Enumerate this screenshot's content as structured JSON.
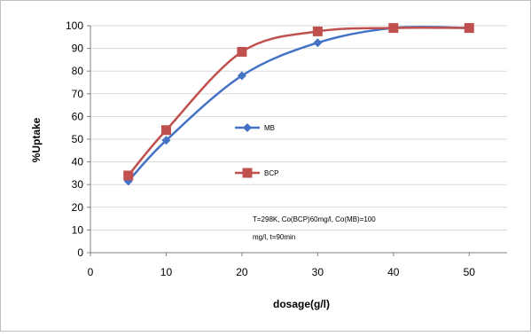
{
  "chart_data": {
    "type": "line",
    "title": "",
    "xlabel": "dosage(g/l)",
    "ylabel": "%Uptake",
    "xlim": [
      0,
      55
    ],
    "ylim": [
      0,
      100
    ],
    "x_ticks": [
      0,
      10,
      20,
      30,
      40,
      50
    ],
    "y_ticks": [
      0,
      10,
      20,
      30,
      40,
      50,
      60,
      70,
      80,
      90,
      100
    ],
    "grid": "horizontal",
    "series": [
      {
        "name": "MB",
        "color": "#4472C4",
        "marker": "diamond",
        "x": [
          5,
          10,
          20,
          30,
          40,
          50
        ],
        "y": [
          31.5,
          49.5,
          78,
          92.5,
          99,
          99
        ]
      },
      {
        "name": "BCP",
        "color": "#C0504D",
        "marker": "square",
        "x": [
          5,
          10,
          20,
          30,
          40,
          50
        ],
        "y": [
          34,
          54,
          88.5,
          97.5,
          99,
          99
        ]
      }
    ],
    "annotation": {
      "line1": "T=298K, Co(BCP)60mg/l, Co(MB)=100",
      "line2": "mg/l, t=90min"
    }
  }
}
